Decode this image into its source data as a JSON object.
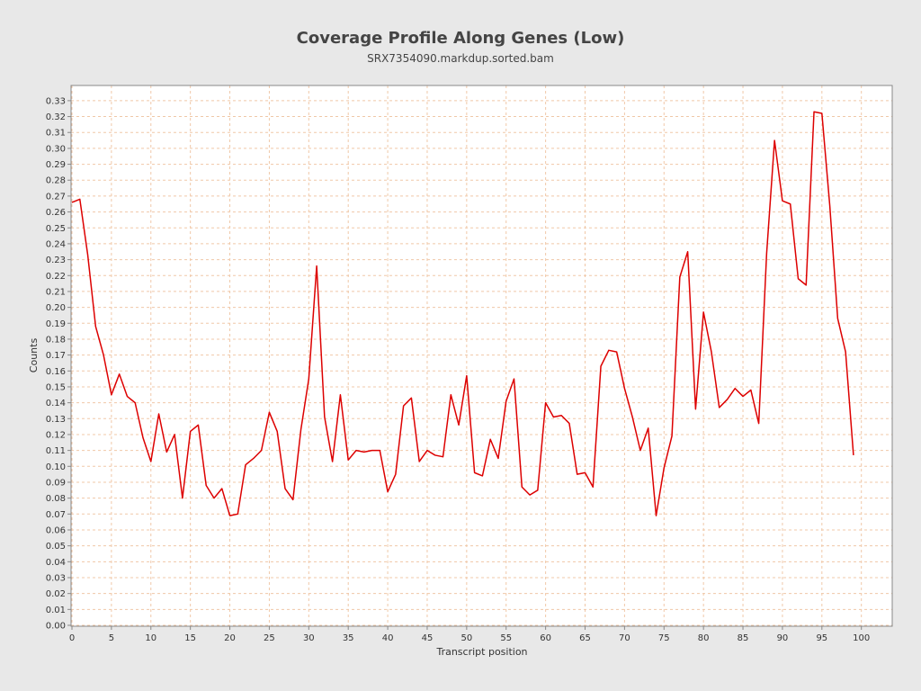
{
  "chart_data": {
    "type": "line",
    "title": "Coverage Profile Along Genes (Low)",
    "subtitle": "SRX7354090.markdup.sorted.bam",
    "xlabel": "Transcript position",
    "ylabel": "Counts",
    "xlim": [
      0,
      104
    ],
    "ylim": [
      0,
      0.34
    ],
    "x_ticks": [
      0,
      5,
      10,
      15,
      20,
      25,
      30,
      35,
      40,
      45,
      50,
      55,
      60,
      65,
      70,
      75,
      80,
      85,
      90,
      95,
      100
    ],
    "y_ticks": [
      0.0,
      0.01,
      0.02,
      0.03,
      0.04,
      0.05,
      0.06,
      0.07,
      0.08,
      0.09,
      0.1,
      0.11,
      0.12,
      0.13,
      0.14,
      0.15,
      0.16,
      0.17,
      0.18,
      0.19,
      0.2,
      0.21,
      0.22,
      0.23,
      0.24,
      0.25,
      0.26,
      0.27,
      0.28,
      0.29,
      0.3,
      0.31,
      0.32,
      0.33
    ],
    "grid": true,
    "colors": {
      "line": "#dd0000",
      "plot_bg": "#ffffff",
      "grid": "#f0c8a8",
      "page_bg": "#e8e8e8"
    },
    "series": [
      {
        "x": [
          0,
          1,
          2,
          3,
          4,
          5,
          6,
          7,
          8,
          9,
          10,
          11,
          12,
          13,
          14,
          15,
          16,
          17,
          18,
          19,
          20,
          21,
          22,
          23,
          24,
          25,
          26,
          27,
          28,
          29,
          30,
          31,
          32,
          33,
          34,
          35,
          36,
          37,
          38,
          39,
          40,
          41,
          42,
          43,
          44,
          45,
          46,
          47,
          48,
          49,
          50,
          51,
          52,
          53,
          54,
          55,
          56,
          57,
          58,
          59,
          60,
          61,
          62,
          63,
          64,
          65,
          66,
          67,
          68,
          69,
          70,
          71,
          72,
          73,
          74,
          75,
          76,
          77,
          78,
          79,
          80,
          81,
          82,
          83,
          84,
          85,
          86,
          87,
          88,
          89,
          90,
          91,
          92,
          93,
          94,
          95,
          96,
          97,
          98,
          99
        ],
        "values": [
          0.266,
          0.268,
          0.233,
          0.188,
          0.17,
          0.145,
          0.158,
          0.144,
          0.14,
          0.118,
          0.103,
          0.133,
          0.109,
          0.12,
          0.08,
          0.122,
          0.126,
          0.088,
          0.08,
          0.086,
          0.069,
          0.07,
          0.101,
          0.105,
          0.11,
          0.134,
          0.122,
          0.086,
          0.079,
          0.123,
          0.155,
          0.226,
          0.131,
          0.103,
          0.145,
          0.104,
          0.11,
          0.109,
          0.11,
          0.11,
          0.084,
          0.095,
          0.138,
          0.143,
          0.103,
          0.11,
          0.107,
          0.106,
          0.145,
          0.126,
          0.157,
          0.096,
          0.094,
          0.117,
          0.105,
          0.141,
          0.155,
          0.087,
          0.082,
          0.085,
          0.14,
          0.131,
          0.132,
          0.127,
          0.095,
          0.096,
          0.087,
          0.163,
          0.173,
          0.172,
          0.149,
          0.131,
          0.11,
          0.124,
          0.069,
          0.099,
          0.119,
          0.219,
          0.235,
          0.136,
          0.197,
          0.172,
          0.137,
          0.142,
          0.149,
          0.144,
          0.148,
          0.127,
          0.234,
          0.305,
          0.267,
          0.265,
          0.218,
          0.214,
          0.323,
          0.322,
          0.264,
          0.193,
          0.172,
          0.107
        ]
      }
    ]
  }
}
